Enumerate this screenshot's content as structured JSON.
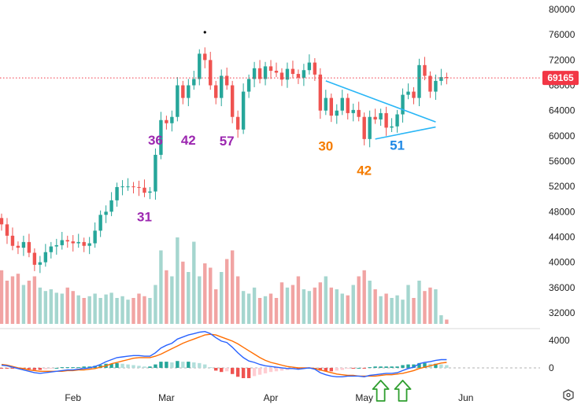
{
  "chart_data": {
    "type": "candlestick",
    "x_labels": [
      "Feb",
      "Mar",
      "Apr",
      "May",
      "Jun"
    ],
    "price_axis": {
      "ticks": [
        "80000",
        "76000",
        "72000",
        "68000",
        "64000",
        "60000",
        "56000",
        "52000",
        "48000",
        "44000",
        "40000",
        "36000",
        "32000"
      ],
      "range": [
        30000,
        81500
      ]
    },
    "macd_axis": {
      "ticks": [
        "4000",
        "0"
      ],
      "range": [
        -2300,
        5500
      ]
    },
    "current_price": {
      "value": 69165,
      "label": "69165",
      "color": "#f23645"
    },
    "colors": {
      "up": "#26a69a",
      "down": "#ef5350",
      "up_volume": "#a5d6cf",
      "down_volume": "#f1a4a3",
      "macd_line": "#2962ff",
      "signal_line": "#ff6d00",
      "annotation_purple": "#9c27b0",
      "annotation_orange": "#f57c00",
      "annotation_blue": "#1e88e5",
      "triangle": "#29b6f6",
      "arrows": "#2e9e2e"
    },
    "annotations": [
      {
        "text": "36",
        "color": "purple",
        "x_index": 28,
        "price": 58600
      },
      {
        "text": "42",
        "color": "purple",
        "x_index": 34,
        "price": 58600
      },
      {
        "text": "57",
        "color": "purple",
        "x_index": 41,
        "price": 58500
      },
      {
        "text": "31",
        "color": "purple",
        "x_index": 26,
        "price": 46500
      },
      {
        "text": "30",
        "color": "orange",
        "x_index": 59,
        "price": 57700
      },
      {
        "text": "42",
        "color": "orange",
        "x_index": 66,
        "price": 53800
      },
      {
        "text": "51",
        "color": "blue",
        "x_index": 72,
        "price": 57800
      }
    ],
    "triangle": {
      "upper": [
        [
          59,
          68700
        ],
        [
          79,
          62200
        ]
      ],
      "lower": [
        [
          68,
          59500
        ],
        [
          79,
          61400
        ]
      ]
    },
    "arrows": [
      {
        "x_index": 69
      },
      {
        "x_index": 73
      }
    ],
    "candles": {
      "open": [
        47000,
        46000,
        44200,
        42600,
        42300,
        43200,
        41500,
        39600,
        40000,
        41600,
        42500,
        42700,
        43500,
        43300,
        43000,
        43200,
        42600,
        43000,
        45000,
        47500,
        48000,
        49800,
        51900,
        52000,
        52000,
        51900,
        51800,
        51000,
        51200,
        57000,
        62500,
        62000,
        63000,
        68000,
        66000,
        68000,
        69000,
        73000,
        72000,
        68000,
        66000,
        69500,
        68000,
        63000,
        61000,
        67000,
        69000,
        70700,
        69000,
        71000,
        70300,
        70000,
        68900,
        70600,
        69800,
        69200,
        70400,
        71600,
        69700,
        64000,
        66000,
        63200,
        64000,
        66000,
        63600,
        64100,
        63000,
        59500,
        63000,
        62600,
        63600,
        61300,
        61500,
        63400,
        66500,
        67000,
        66000,
        71200,
        69500,
        67000,
        68700,
        69300
      ],
      "close": [
        46000,
        44200,
        42600,
        42300,
        43200,
        41500,
        39600,
        40000,
        41600,
        42500,
        42700,
        43500,
        43300,
        43000,
        43200,
        42600,
        43000,
        45000,
        47500,
        48000,
        49800,
        51900,
        52000,
        52000,
        51900,
        51800,
        51000,
        51200,
        57000,
        62500,
        62000,
        63000,
        68000,
        66000,
        68000,
        69000,
        73000,
        72000,
        68000,
        66000,
        69500,
        68000,
        63000,
        61000,
        67000,
        69000,
        70700,
        69000,
        71000,
        70300,
        70000,
        68900,
        70600,
        69800,
        69200,
        70400,
        71600,
        69700,
        64000,
        66000,
        63200,
        64000,
        66000,
        63600,
        64100,
        63000,
        59500,
        63000,
        62600,
        63600,
        61300,
        61500,
        63400,
        66500,
        67000,
        66000,
        71200,
        69500,
        67000,
        68700,
        69300,
        69165
      ]
    },
    "volume": [
      0.62,
      0.5,
      0.55,
      0.58,
      0.45,
      0.5,
      0.55,
      0.42,
      0.38,
      0.4,
      0.36,
      0.35,
      0.42,
      0.38,
      0.33,
      0.3,
      0.32,
      0.35,
      0.3,
      0.34,
      0.36,
      0.3,
      0.32,
      0.28,
      0.3,
      0.35,
      0.32,
      0.3,
      0.45,
      0.85,
      0.62,
      0.55,
      1.0,
      0.72,
      0.6,
      0.95,
      0.55,
      0.7,
      0.65,
      0.4,
      0.6,
      0.75,
      0.85,
      0.55,
      0.38,
      0.35,
      0.42,
      0.3,
      0.32,
      0.35,
      0.3,
      0.48,
      0.42,
      0.45,
      0.55,
      0.4,
      0.38,
      0.42,
      0.48,
      0.55,
      0.42,
      0.4,
      0.35,
      0.33,
      0.45,
      0.55,
      0.62,
      0.5,
      0.4,
      0.32,
      0.35,
      0.3,
      0.33,
      0.28,
      0.45,
      0.3,
      0.5,
      0.38,
      0.42,
      0.4,
      0.1,
      0.05
    ],
    "macd": [
      400,
      300,
      100,
      -100,
      -300,
      -500,
      -700,
      -800,
      -700,
      -600,
      -500,
      -400,
      -300,
      -300,
      -200,
      -100,
      0,
      200,
      500,
      900,
      1200,
      1500,
      1600,
      1700,
      1800,
      1800,
      1700,
      1700,
      2200,
      2900,
      3300,
      3600,
      4200,
      4500,
      4800,
      5000,
      5200,
      5300,
      5000,
      4400,
      3900,
      3700,
      3000,
      2200,
      1500,
      1000,
      800,
      500,
      300,
      200,
      100,
      0,
      -100,
      -100,
      -200,
      -100,
      0,
      -200,
      -700,
      -1000,
      -1200,
      -1300,
      -1300,
      -1200,
      -1200,
      -1200,
      -1300,
      -1100,
      -1000,
      -900,
      -800,
      -800,
      -700,
      -400,
      -100,
      100,
      600,
      800,
      900,
      1100,
      1200,
      1200
    ],
    "signal": [
      500,
      400,
      200,
      0,
      -100,
      -300,
      -400,
      -500,
      -500,
      -500,
      -500,
      -500,
      -400,
      -400,
      -300,
      -300,
      -200,
      -100,
      100,
      300,
      600,
      800,
      1000,
      1200,
      1400,
      1500,
      1500,
      1500,
      1700,
      2000,
      2400,
      2800,
      3200,
      3600,
      3900,
      4200,
      4500,
      4800,
      4900,
      4800,
      4500,
      4200,
      3900,
      3500,
      3000,
      2500,
      2000,
      1500,
      1100,
      800,
      600,
      400,
      200,
      100,
      0,
      0,
      0,
      -100,
      -300,
      -500,
      -700,
      -900,
      -1000,
      -1100,
      -1100,
      -1200,
      -1200,
      -1200,
      -1200,
      -1100,
      -1000,
      -1000,
      -900,
      -800,
      -600,
      -400,
      -100,
      100,
      300,
      500,
      700,
      800
    ]
  }
}
